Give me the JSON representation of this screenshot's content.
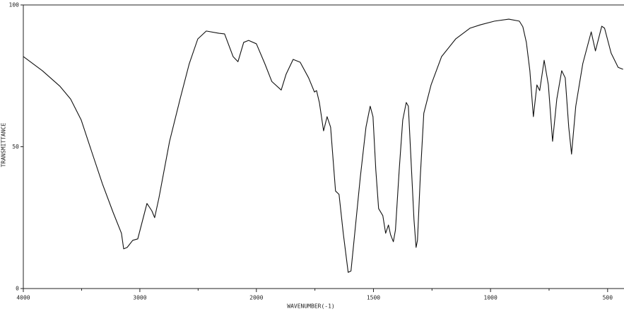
{
  "chart_data": {
    "type": "line",
    "xlabel": "WAVENUMBER(-1)",
    "ylabel": "TRANSMITTANCE",
    "xlim": [
      4000,
      430
    ],
    "x_scale_change_at": 2000,
    "xticks": [
      4000,
      3000,
      2000,
      1500,
      1000,
      500
    ],
    "xminorticks": [
      3500,
      2500,
      1750,
      1250,
      750
    ],
    "ylim": [
      0,
      100
    ],
    "yticks": [
      0,
      50,
      100
    ],
    "color": "#111111",
    "x": [
      4000,
      3836,
      3685,
      3594,
      3503,
      3412,
      3321,
      3230,
      3158,
      3139,
      3109,
      3061,
      3018,
      2939,
      2897,
      2873,
      2836,
      2745,
      2655,
      2576,
      2503,
      2430,
      2321,
      2273,
      2200,
      2158,
      2109,
      2067,
      2000,
      1964,
      1934,
      1894,
      1873,
      1843,
      1813,
      1777,
      1752,
      1743,
      1731,
      1713,
      1698,
      1683,
      1662,
      1647,
      1629,
      1608,
      1596,
      1577,
      1556,
      1532,
      1514,
      1502,
      1490,
      1478,
      1460,
      1448,
      1436,
      1427,
      1415,
      1406,
      1390,
      1375,
      1360,
      1351,
      1339,
      1327,
      1318,
      1312,
      1300,
      1285,
      1254,
      1209,
      1149,
      1088,
      1043,
      983,
      922,
      877,
      862,
      847,
      832,
      817,
      802,
      790,
      771,
      753,
      735,
      717,
      696,
      681,
      666,
      654,
      636,
      606,
      570,
      552,
      525,
      513,
      485,
      455,
      434
    ],
    "values": [
      81.8,
      76.8,
      71.3,
      66.8,
      59.4,
      48.1,
      36.9,
      26.9,
      19.5,
      14.0,
      14.5,
      17.0,
      17.5,
      30.0,
      27.4,
      25.0,
      32.0,
      51.9,
      66.8,
      79.3,
      88.0,
      90.8,
      90.0,
      89.8,
      81.8,
      80.0,
      86.8,
      87.5,
      86.3,
      79.3,
      73.0,
      70.0,
      75.6,
      80.8,
      79.8,
      74.3,
      69.3,
      69.8,
      65.6,
      55.6,
      60.6,
      56.9,
      34.4,
      33.2,
      19.5,
      5.7,
      6.2,
      21.9,
      39.4,
      56.9,
      64.3,
      60.6,
      41.9,
      28.2,
      25.7,
      19.5,
      22.4,
      19.0,
      16.5,
      20.7,
      41.9,
      59.4,
      65.6,
      64.3,
      44.4,
      24.4,
      14.5,
      17.0,
      39.4,
      61.8,
      71.8,
      81.8,
      88.0,
      91.8,
      93.0,
      94.3,
      95.0,
      94.3,
      92.3,
      86.8,
      76.8,
      60.6,
      71.8,
      69.8,
      80.5,
      71.8,
      51.9,
      66.8,
      76.8,
      74.3,
      56.9,
      47.4,
      64.3,
      79.3,
      90.5,
      83.8,
      92.5,
      91.8,
      83.0,
      78.0,
      77.3
    ]
  }
}
